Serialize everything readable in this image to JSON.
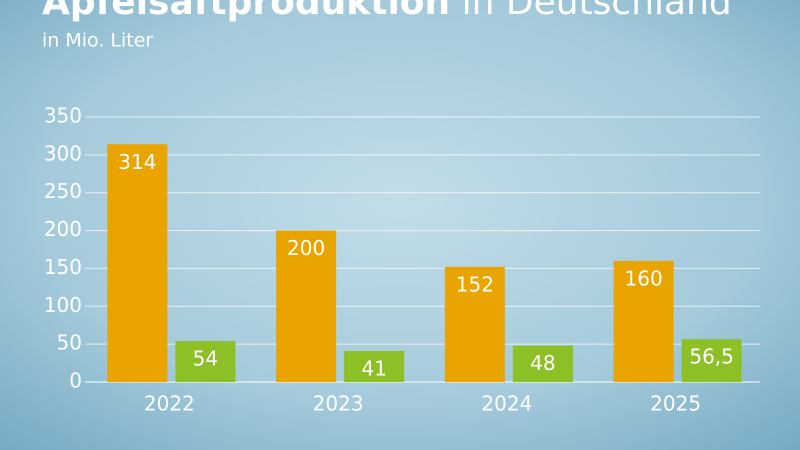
{
  "chart_data": {
    "type": "bar",
    "title": [
      "Apfelsaftproduktion",
      "in Deutschland"
    ],
    "subtitle": "in Mio. Liter",
    "categories": [
      "2022",
      "2023",
      "2024",
      "2025"
    ],
    "series": [
      {
        "color": "#e9a400",
        "values": [
          314,
          200,
          152,
          160
        ]
      },
      {
        "color": "#8dbf27",
        "values": [
          54,
          41,
          48,
          56.5
        ],
        "value_labels": [
          "54",
          "41",
          "48",
          "56,5"
        ]
      }
    ],
    "ylim": [
      0,
      350
    ],
    "yticks": [
      0,
      50,
      100,
      150,
      200,
      250,
      300,
      350
    ],
    "grid": true
  }
}
